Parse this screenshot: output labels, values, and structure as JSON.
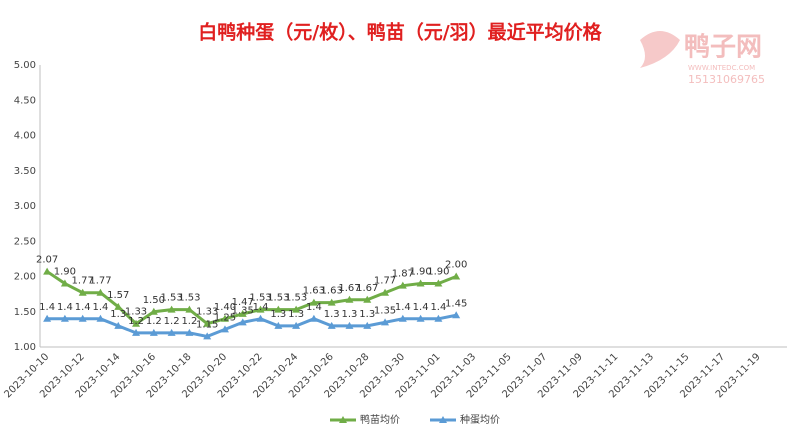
{
  "chart_data": {
    "type": "line",
    "title": "白鸭种蛋（元/枚）、鸭苗（元/羽）最近平均价格",
    "watermark": {
      "name": "鸭子网",
      "site": "WWW.INTEDC.COM",
      "phone": "15131069765"
    },
    "categories": [
      "2023-10-10",
      null,
      "2023-10-12",
      null,
      "2023-10-14",
      null,
      "2023-10-16",
      null,
      "2023-10-18",
      null,
      "2023-10-20",
      null,
      "2023-10-22",
      null,
      "2023-10-24",
      null,
      "2023-10-26",
      null,
      "2023-10-28",
      null,
      "2023-10-30",
      null,
      "2023-11-01",
      null,
      "2023-11-03",
      null,
      "2023-11-05",
      null,
      "2023-11-07",
      null,
      "2023-11-09",
      null,
      "2023-11-11",
      null,
      "2023-11-13",
      null,
      "2023-11-15",
      null,
      "2023-11-17",
      null,
      "2023-11-19",
      null
    ],
    "series": [
      {
        "name": "鸭苗均价",
        "color": "#70ad47",
        "values": [
          2.07,
          1.9,
          1.77,
          1.77,
          1.57,
          1.33,
          1.5,
          1.53,
          1.53,
          1.33,
          1.4,
          1.47,
          1.53,
          1.53,
          1.53,
          1.63,
          1.63,
          1.67,
          1.67,
          1.77,
          1.87,
          1.9,
          1.9,
          2.0,
          null,
          null,
          null,
          null,
          null,
          null,
          null,
          null,
          null,
          null,
          null,
          null,
          null,
          null,
          null,
          null,
          null,
          null
        ],
        "value_labels": [
          "2.07",
          "1.90",
          "1.77",
          "1.77",
          "1.57",
          "1.33",
          "1.50",
          "1.53",
          "1.53",
          "1.33",
          "1.40",
          "1.47",
          "1.53",
          "1.53",
          "1.53",
          "1.63",
          "1.63",
          "1.67",
          "1.67",
          "1.77",
          "1.87",
          "1.90",
          "1.90",
          "2.00",
          null,
          null,
          null,
          null,
          null,
          null,
          null,
          null,
          null,
          null,
          null,
          null,
          null,
          null,
          null,
          null,
          null,
          null
        ]
      },
      {
        "name": "种蛋均价",
        "color": "#5b9bd5",
        "values": [
          1.4,
          1.4,
          1.4,
          1.4,
          1.3,
          1.2,
          1.2,
          1.2,
          1.2,
          1.15,
          1.25,
          1.35,
          1.4,
          1.3,
          1.3,
          1.4,
          1.3,
          1.3,
          1.3,
          1.35,
          1.4,
          1.4,
          1.4,
          1.45,
          null,
          null,
          null,
          null,
          null,
          null,
          null,
          null,
          null,
          null,
          null,
          null,
          null,
          null,
          null,
          null,
          null,
          null
        ]
      }
    ],
    "ylim": [
      1,
      5
    ],
    "yticks": [
      {
        "value": 1,
        "label": "1.00"
      },
      {
        "value": 1.5,
        "label": "1.50"
      },
      {
        "value": 2,
        "label": "2.00"
      },
      {
        "value": 2.5,
        "label": "2.50"
      },
      {
        "value": 3,
        "label": "3.00"
      },
      {
        "value": 3.5,
        "label": "3.50"
      },
      {
        "value": 4,
        "label": "4.00"
      },
      {
        "value": 4.5,
        "label": "4.50"
      },
      {
        "value": 5,
        "label": "5.00"
      }
    ],
    "grid": false,
    "legend": "bottom"
  }
}
